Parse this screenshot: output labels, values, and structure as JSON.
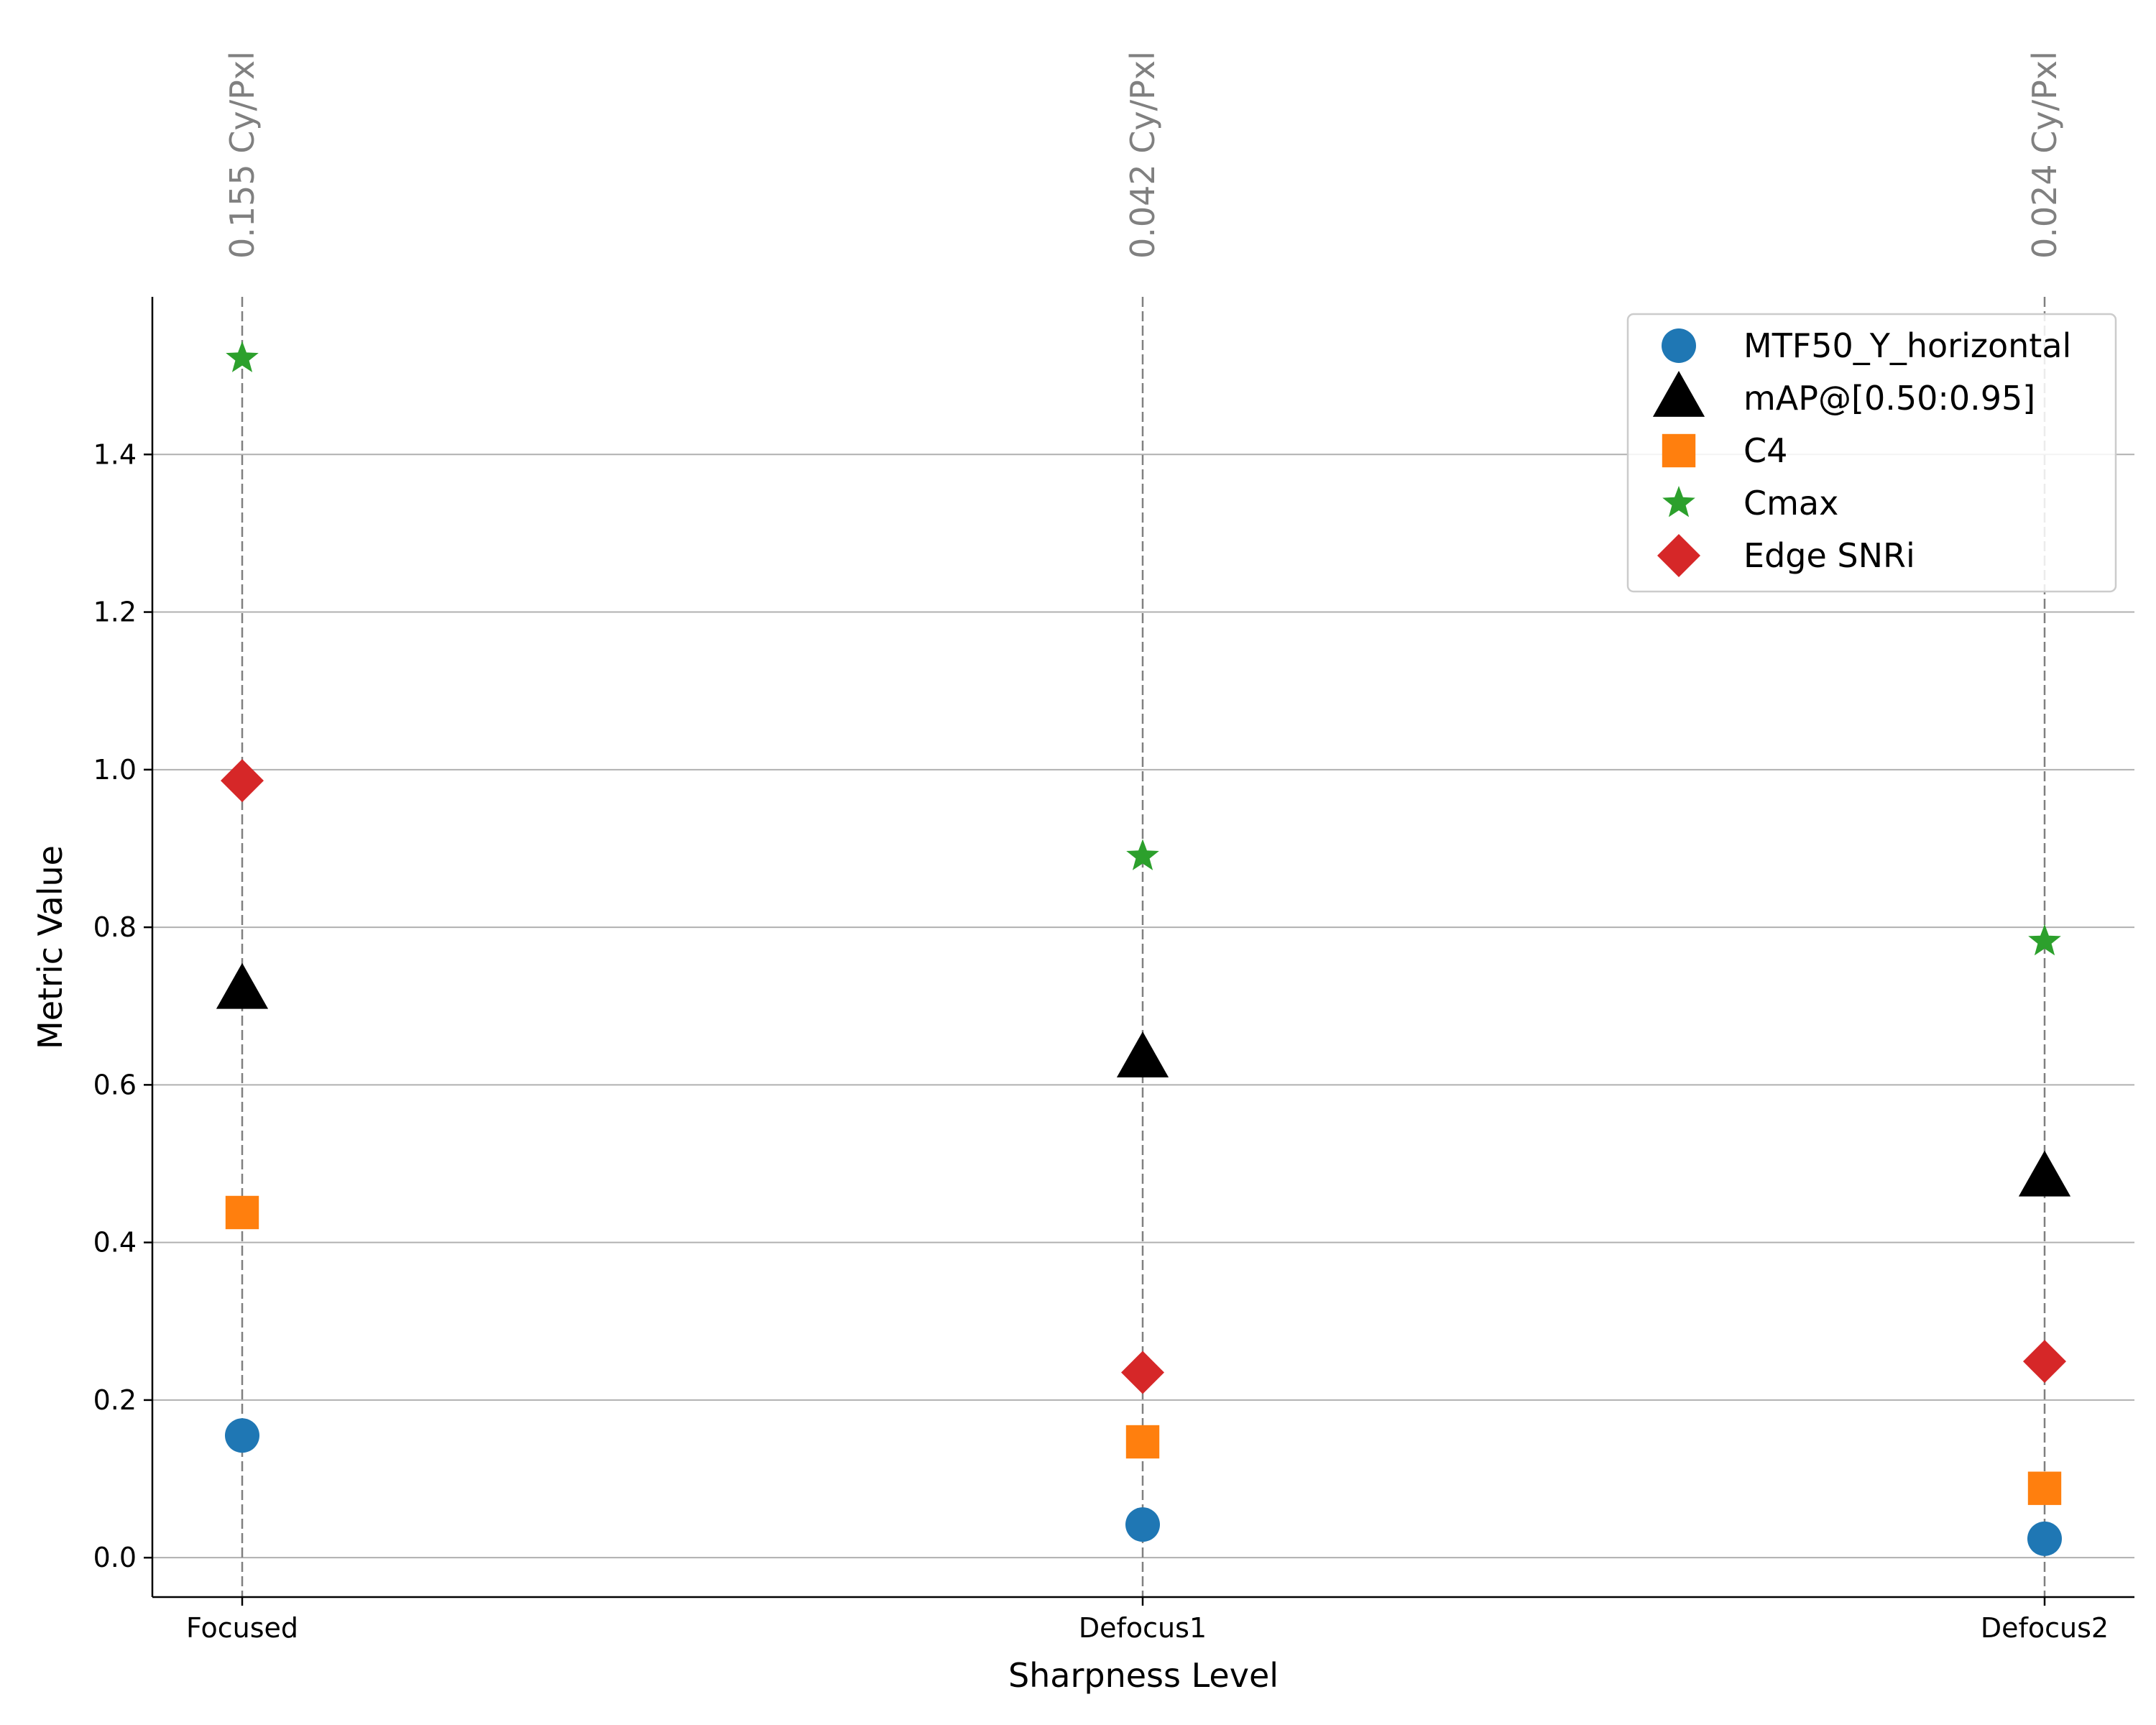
{
  "chart_data": {
    "type": "scatter",
    "title": "",
    "xlabel": "Sharpness Level",
    "ylabel": "Metric Value",
    "categories": [
      "Focused",
      "Defocus1",
      "Defocus2"
    ],
    "ylim": [
      -0.05,
      1.6
    ],
    "yticks": [
      "0.0",
      "0.2",
      "0.4",
      "0.6",
      "0.8",
      "1.0",
      "1.2",
      "1.4"
    ],
    "ytick_values": [
      0.0,
      0.2,
      0.4,
      0.6,
      0.8,
      1.0,
      1.2,
      1.4
    ],
    "grid": "horizontal",
    "legend_position": "top-right",
    "annotations": [
      "0.155 Cy/Pxl",
      "0.042 Cy/Pxl",
      "0.024 Cy/Pxl"
    ],
    "series": [
      {
        "name": "MTF50_Y_horizontal",
        "marker": "circle",
        "color": "#1f77b4",
        "values": [
          0.155,
          0.042,
          0.024
        ]
      },
      {
        "name": "mAP@[0.50:0.95]",
        "marker": "triangle",
        "color": "#000000",
        "values": [
          0.72,
          0.633,
          0.482
        ]
      },
      {
        "name": "C4",
        "marker": "square",
        "color": "#ff7f0e",
        "values": [
          0.438,
          0.147,
          0.088
        ]
      },
      {
        "name": "Cmax",
        "marker": "star",
        "color": "#2ca02c",
        "values": [
          1.522,
          0.89,
          0.782
        ]
      },
      {
        "name": "Edge SNRi",
        "marker": "diamond",
        "color": "#d62728",
        "values": [
          0.986,
          0.235,
          0.249
        ]
      }
    ]
  }
}
